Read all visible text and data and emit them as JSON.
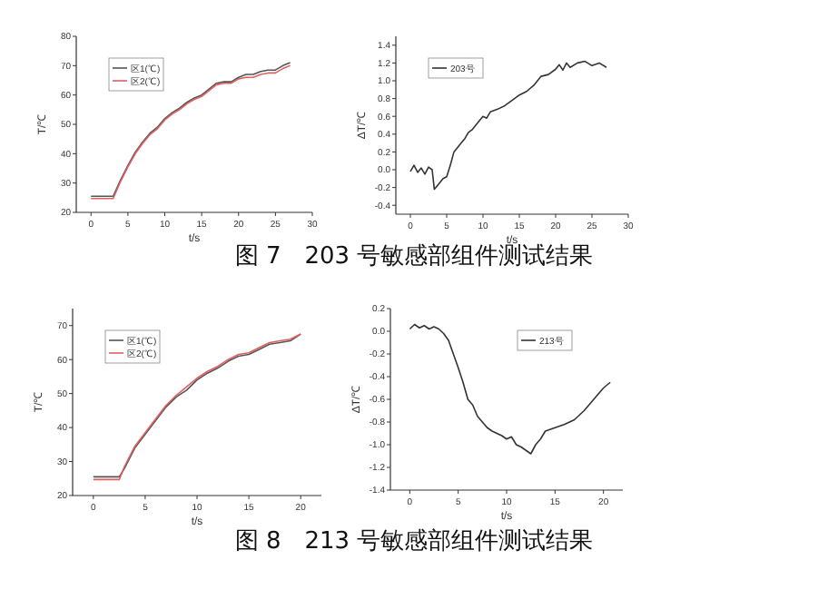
{
  "chart_data": [
    {
      "type": "line",
      "xlabel": "t/s",
      "ylabel": "T/℃",
      "xlim": [
        -2,
        30
      ],
      "ylim": [
        20,
        80
      ],
      "xticks": [
        0,
        5,
        10,
        15,
        20,
        25,
        30
      ],
      "yticks": [
        20,
        30,
        40,
        50,
        60,
        70,
        80
      ],
      "legend": "top left",
      "grid": false,
      "annotations": [
        "图 7　203 号敏感部组件测试结果"
      ],
      "x": [
        0,
        1,
        2,
        3,
        4,
        5,
        6,
        7,
        8,
        9,
        10,
        11,
        12,
        13,
        14,
        15,
        16,
        17,
        18,
        19,
        20,
        21,
        22,
        23,
        24,
        25,
        26,
        27
      ],
      "series": [
        {
          "name": "区1(℃)",
          "color": "#555555",
          "values": [
            25.5,
            25.5,
            25.5,
            25.5,
            31,
            36,
            40.5,
            44,
            47,
            49,
            52,
            54,
            55.5,
            57.5,
            59,
            60,
            62,
            64,
            64.5,
            64.5,
            66,
            67,
            67,
            68,
            68.5,
            68.5,
            70,
            71
          ]
        },
        {
          "name": "区2(℃)",
          "color": "#e06060",
          "values": [
            24.7,
            24.7,
            24.7,
            24.7,
            30.5,
            35.5,
            40,
            43.5,
            46.5,
            48.5,
            51.5,
            53.5,
            55,
            57,
            58.5,
            59.5,
            61.5,
            63.5,
            64,
            64,
            65.5,
            66,
            66,
            67,
            67.5,
            67.5,
            69,
            70
          ]
        }
      ]
    },
    {
      "type": "line",
      "xlabel": "t/s",
      "ylabel": "ΔT/℃",
      "xlim": [
        -2,
        30
      ],
      "ylim": [
        -0.5,
        1.5
      ],
      "xticks": [
        0,
        5,
        10,
        15,
        20,
        25,
        30
      ],
      "yticks": [
        -0.4,
        -0.2,
        {
          "value": 0,
          "label": "0.0"
        },
        0.2,
        0.4,
        0.6,
        0.8,
        {
          "value": 1,
          "label": "1.0"
        },
        1.2,
        1.4
      ],
      "legend": "top left",
      "grid": false,
      "x": [
        0,
        0.5,
        1,
        1.5,
        2,
        2.5,
        3,
        3.3,
        3.7,
        4,
        4.5,
        5,
        5.5,
        6,
        6.5,
        7,
        7.5,
        8,
        8.5,
        9,
        9.5,
        10,
        10.5,
        11,
        12,
        13,
        14,
        15,
        16,
        17,
        18,
        19,
        20,
        20.5,
        21,
        21.5,
        22,
        23,
        24,
        25,
        26,
        27
      ],
      "series": [
        {
          "name": "203号",
          "color": "#333333",
          "values": [
            -0.02,
            0.05,
            -0.03,
            0.02,
            -0.05,
            0.03,
            0,
            -0.22,
            -0.18,
            -0.15,
            -0.1,
            -0.08,
            0.05,
            0.2,
            0.25,
            0.3,
            0.35,
            0.42,
            0.45,
            0.5,
            0.55,
            0.6,
            0.58,
            0.65,
            0.68,
            0.72,
            0.78,
            0.84,
            0.88,
            0.95,
            1.05,
            1.07,
            1.13,
            1.18,
            1.12,
            1.2,
            1.15,
            1.2,
            1.22,
            1.17,
            1.2,
            1.15
          ]
        }
      ]
    },
    {
      "type": "line",
      "xlabel": "t/s",
      "ylabel": "T/℃",
      "xlim": [
        -2,
        22
      ],
      "ylim": [
        20,
        75
      ],
      "xticks": [
        0,
        5,
        10,
        15,
        20
      ],
      "yticks": [
        20,
        30,
        40,
        50,
        60,
        70
      ],
      "legend": "top left",
      "grid": false,
      "annotations": [
        "图 8　213 号敏感部组件测试结果"
      ],
      "x": [
        0,
        1,
        2,
        2.5,
        3,
        4,
        5,
        6,
        7,
        8,
        9,
        10,
        11,
        12,
        13,
        14,
        15,
        16,
        17,
        18,
        19,
        20
      ],
      "series": [
        {
          "name": "区1(℃)",
          "color": "#555555",
          "values": [
            25.5,
            25.5,
            25.5,
            25.5,
            28,
            34,
            38,
            42,
            46,
            49,
            51,
            54,
            56,
            57.5,
            59.5,
            61,
            61.5,
            63,
            64.5,
            65,
            65.5,
            67.5
          ]
        },
        {
          "name": "区2(℃)",
          "color": "#e06060",
          "values": [
            24.7,
            24.7,
            24.7,
            24.7,
            28.5,
            34.5,
            38.5,
            42.5,
            46.5,
            49.5,
            52,
            54.5,
            56.5,
            58,
            60,
            61.5,
            62,
            63.5,
            65,
            65.5,
            66,
            67.5
          ]
        }
      ]
    },
    {
      "type": "line",
      "xlabel": "t/s",
      "ylabel": "ΔT/℃",
      "xlim": [
        -2,
        22
      ],
      "ylim": [
        -1.4,
        0.2
      ],
      "xticks": [
        0,
        5,
        10,
        15,
        20
      ],
      "yticks": [
        -1.4,
        -1.2,
        {
          "value": -1,
          "label": "-1.0"
        },
        -0.8,
        -0.6,
        -0.4,
        -0.2,
        {
          "value": 0,
          "label": "0.0"
        },
        0.2
      ],
      "legend": "top right",
      "grid": false,
      "x": [
        0,
        0.5,
        1,
        1.5,
        2,
        2.5,
        3,
        3.5,
        4,
        4.5,
        5,
        5.5,
        6,
        6.5,
        7,
        7.5,
        8,
        8.5,
        9,
        9.5,
        10,
        10.5,
        11,
        11.5,
        12,
        12.5,
        13,
        13.5,
        14,
        15,
        16,
        17,
        18,
        19,
        20,
        20.7
      ],
      "series": [
        {
          "name": "213号",
          "color": "#333333",
          "values": [
            0.02,
            0.06,
            0.03,
            0.05,
            0.02,
            0.04,
            0.02,
            -0.02,
            -0.08,
            -0.2,
            -0.32,
            -0.45,
            -0.6,
            -0.65,
            -0.75,
            -0.8,
            -0.85,
            -0.88,
            -0.9,
            -0.92,
            -0.95,
            -0.93,
            -1.0,
            -1.02,
            -1.05,
            -1.08,
            -1.0,
            -0.95,
            -0.88,
            -0.85,
            -0.82,
            -0.78,
            -0.7,
            -0.6,
            -0.5,
            -0.45
          ]
        }
      ]
    }
  ]
}
